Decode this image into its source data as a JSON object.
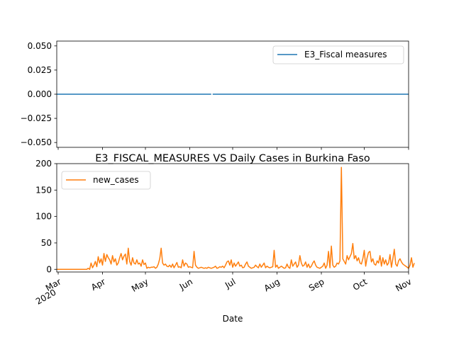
{
  "chart_data": [
    {
      "type": "line",
      "title": "",
      "xlabel": "",
      "ylabel": "",
      "ylim": [
        -0.055,
        0.055
      ],
      "yticks": [
        -0.05,
        -0.025,
        0.0,
        0.025,
        0.05
      ],
      "ytick_labels": [
        "−0.050",
        "−0.025",
        "0.000",
        "0.025",
        "0.050"
      ],
      "legend_position": "upper right",
      "series": [
        {
          "name": "E3_Fiscal measures",
          "color": "#1f77b4",
          "segments": [
            {
              "start": "2020-02-29",
              "end": "2020-06-16",
              "value": 0
            },
            {
              "start": "2020-06-17",
              "end": "2020-11-01",
              "value": 0
            }
          ]
        }
      ]
    },
    {
      "type": "line",
      "title": "E3_FISCAL_MEASURES VS Daily Cases in Burkina Faso",
      "xlabel": "Date",
      "ylabel": "",
      "ylim": [
        -5,
        200
      ],
      "yticks": [
        0,
        50,
        100,
        150,
        200
      ],
      "ytick_labels": [
        "0",
        "50",
        "100",
        "150",
        "200"
      ],
      "xlim": [
        "2020-02-29",
        "2020-11-01"
      ],
      "xtick_labels": [
        {
          "date": "2020-03-01",
          "label": "Mar",
          "sublabel": "2020"
        },
        {
          "date": "2020-04-01",
          "label": "Apr",
          "sublabel": ""
        },
        {
          "date": "2020-05-01",
          "label": "May",
          "sublabel": ""
        },
        {
          "date": "2020-06-01",
          "label": "Jun",
          "sublabel": ""
        },
        {
          "date": "2020-07-01",
          "label": "Jul",
          "sublabel": ""
        },
        {
          "date": "2020-08-01",
          "label": "Aug",
          "sublabel": ""
        },
        {
          "date": "2020-09-01",
          "label": "Sep",
          "sublabel": ""
        },
        {
          "date": "2020-10-01",
          "label": "Oct",
          "sublabel": ""
        },
        {
          "date": "2020-11-01",
          "label": "Nov",
          "sublabel": ""
        }
      ],
      "legend_position": "upper left",
      "series": [
        {
          "name": "new_cases",
          "color": "#ff7f0e",
          "start_date": "2020-02-29",
          "values": [
            0,
            0,
            0,
            0,
            0,
            0,
            0,
            0,
            0,
            0,
            0,
            0,
            0,
            0,
            0,
            0,
            0,
            0,
            0,
            0,
            0,
            0,
            2,
            0,
            12,
            3,
            8,
            15,
            5,
            24,
            12,
            20,
            8,
            30,
            15,
            28,
            22,
            18,
            10,
            26,
            14,
            20,
            8,
            12,
            22,
            30,
            18,
            25,
            29,
            10,
            40,
            15,
            8,
            22,
            12,
            10,
            18,
            10,
            12,
            6,
            18,
            9,
            12,
            2,
            4,
            3,
            4,
            4,
            5,
            2,
            4,
            10,
            20,
            40,
            12,
            8,
            10,
            6,
            5,
            8,
            4,
            10,
            3,
            8,
            13,
            4,
            5,
            3,
            18,
            6,
            12,
            10,
            4,
            5,
            4,
            3,
            34,
            8,
            4,
            2,
            3,
            4,
            3,
            2,
            3,
            2,
            4,
            3,
            2,
            3,
            4,
            6,
            2,
            3,
            5,
            4,
            6,
            3,
            8,
            14,
            16,
            8,
            18,
            4,
            12,
            6,
            10,
            14,
            6,
            8,
            3,
            4,
            10,
            14,
            6,
            4,
            2,
            3,
            4,
            8,
            5,
            3,
            10,
            4,
            8,
            12,
            3,
            6,
            4,
            3,
            4,
            5,
            36,
            4,
            8,
            2,
            4,
            6,
            4,
            2,
            3,
            10,
            4,
            2,
            18,
            6,
            10,
            14,
            4,
            8,
            26,
            12,
            6,
            8,
            14,
            4,
            10,
            3,
            6,
            12,
            16,
            8,
            4,
            3,
            2,
            4,
            6,
            12,
            2,
            8,
            34,
            3,
            44,
            8,
            4,
            6,
            12,
            10,
            16,
            193,
            20,
            15,
            10,
            26,
            18,
            24,
            30,
            49,
            20,
            26,
            16,
            22,
            12,
            10,
            20,
            36,
            6,
            22,
            32,
            34,
            14,
            20,
            10,
            8,
            16,
            12,
            26,
            6,
            22,
            10,
            18,
            8,
            12,
            28,
            4,
            20,
            38,
            10,
            6,
            16,
            20,
            14,
            10,
            8,
            6,
            4,
            2,
            8,
            22,
            4,
            12
          ]
        }
      ]
    }
  ]
}
